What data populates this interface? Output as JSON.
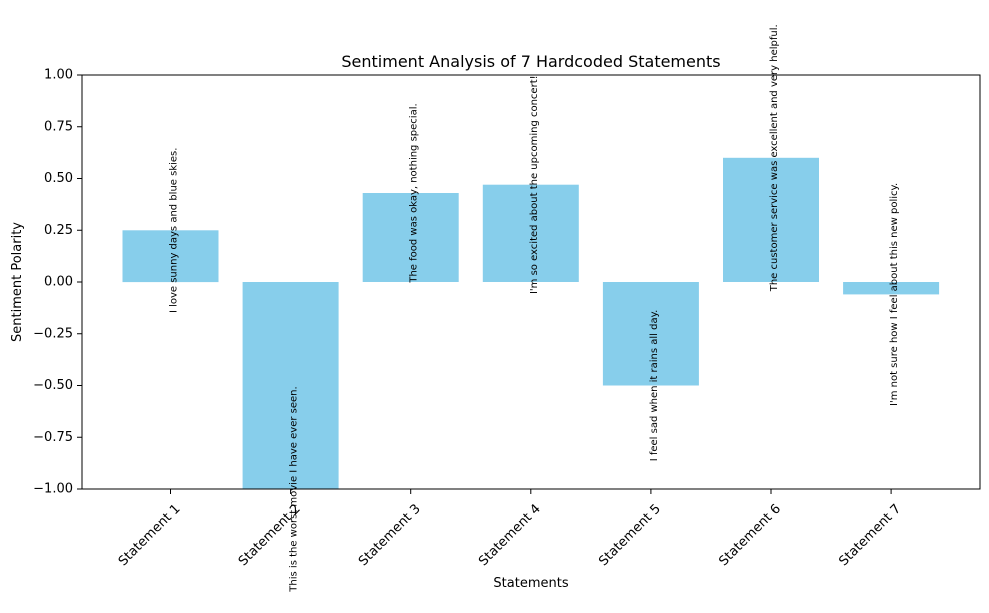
{
  "chart_data": {
    "type": "bar",
    "title": "Sentiment Analysis of 7 Hardcoded Statements",
    "xlabel": "Statements",
    "ylabel": "Sentiment Polarity",
    "ylim": [
      -1.0,
      1.0
    ],
    "yticks": [
      -1.0,
      -0.75,
      -0.5,
      -0.25,
      0.0,
      0.25,
      0.5,
      0.75,
      1.0
    ],
    "ytick_labels": [
      "−1.00",
      "−0.75",
      "−0.50",
      "−0.25",
      "0.00",
      "0.25",
      "0.50",
      "0.75",
      "1.00"
    ],
    "categories": [
      "Statement 1",
      "Statement 2",
      "Statement 3",
      "Statement 4",
      "Statement 5",
      "Statement 6",
      "Statement 7"
    ],
    "values": [
      0.25,
      -1.0,
      0.43,
      0.47,
      -0.5,
      0.6,
      -0.06
    ],
    "statements": [
      "I love sunny days and blue skies.",
      "This is the worst movie I have ever seen.",
      "The food was okay, nothing special.",
      "I'm so excited about the upcoming concert!",
      "I feel sad when it rains all day.",
      "The customer service was excellent and very helpful.",
      "I'm not sure how I feel about this new policy."
    ],
    "bar_color": "#87ceeb",
    "grid": false,
    "legend": "none"
  }
}
